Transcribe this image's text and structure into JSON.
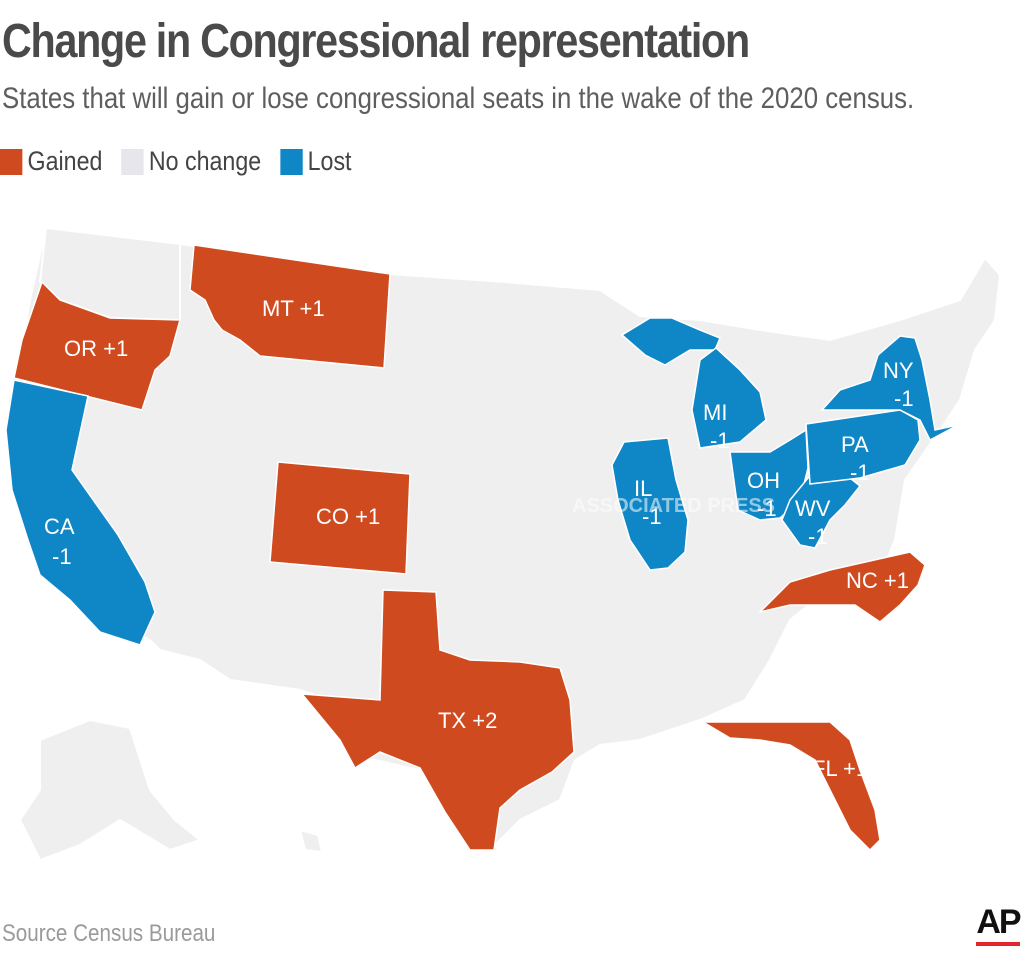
{
  "title": "Change in Congressional representation",
  "subtitle": "States that will gain or lose congressional seats in the wake of the 2020 census.",
  "legend": [
    {
      "label": "Gained",
      "color": "#d04a1f"
    },
    {
      "label": "No change",
      "color": "#e6e6ec"
    },
    {
      "label": "Lost",
      "color": "#0f86c6"
    }
  ],
  "colors": {
    "gained": "#d04a1f",
    "no_change": "#efefef",
    "lost": "#0f86c6"
  },
  "states": [
    {
      "id": "OR",
      "change": "+1",
      "status": "gained",
      "label": "OR +1"
    },
    {
      "id": "MT",
      "change": "+1",
      "status": "gained",
      "label": "MT +1"
    },
    {
      "id": "CO",
      "change": "+1",
      "status": "gained",
      "label": "CO +1"
    },
    {
      "id": "TX",
      "change": "+2",
      "status": "gained",
      "label": "TX +2"
    },
    {
      "id": "NC",
      "change": "+1",
      "status": "gained",
      "label": "NC +1"
    },
    {
      "id": "FL",
      "change": "+1",
      "status": "gained",
      "label": "FL +1"
    },
    {
      "id": "CA",
      "change": "-1",
      "status": "lost",
      "abbr": "CA",
      "val": "-1"
    },
    {
      "id": "IL",
      "change": "-1",
      "status": "lost",
      "abbr": "IL",
      "val": "-1"
    },
    {
      "id": "MI",
      "change": "-1",
      "status": "lost",
      "abbr": "MI",
      "val": "-1"
    },
    {
      "id": "OH",
      "change": "-1",
      "status": "lost",
      "abbr": "OH",
      "val": "-1"
    },
    {
      "id": "WV",
      "change": "-1",
      "status": "lost",
      "abbr": "WV",
      "val": "-1"
    },
    {
      "id": "PA",
      "change": "-1",
      "status": "lost",
      "abbr": "PA",
      "val": "-1"
    },
    {
      "id": "NY",
      "change": "-1",
      "status": "lost",
      "abbr": "NY",
      "val": "-1"
    }
  ],
  "watermark": "ASSOCIATED PRESS",
  "source": "Source  Census Bureau",
  "logo": "AP"
}
